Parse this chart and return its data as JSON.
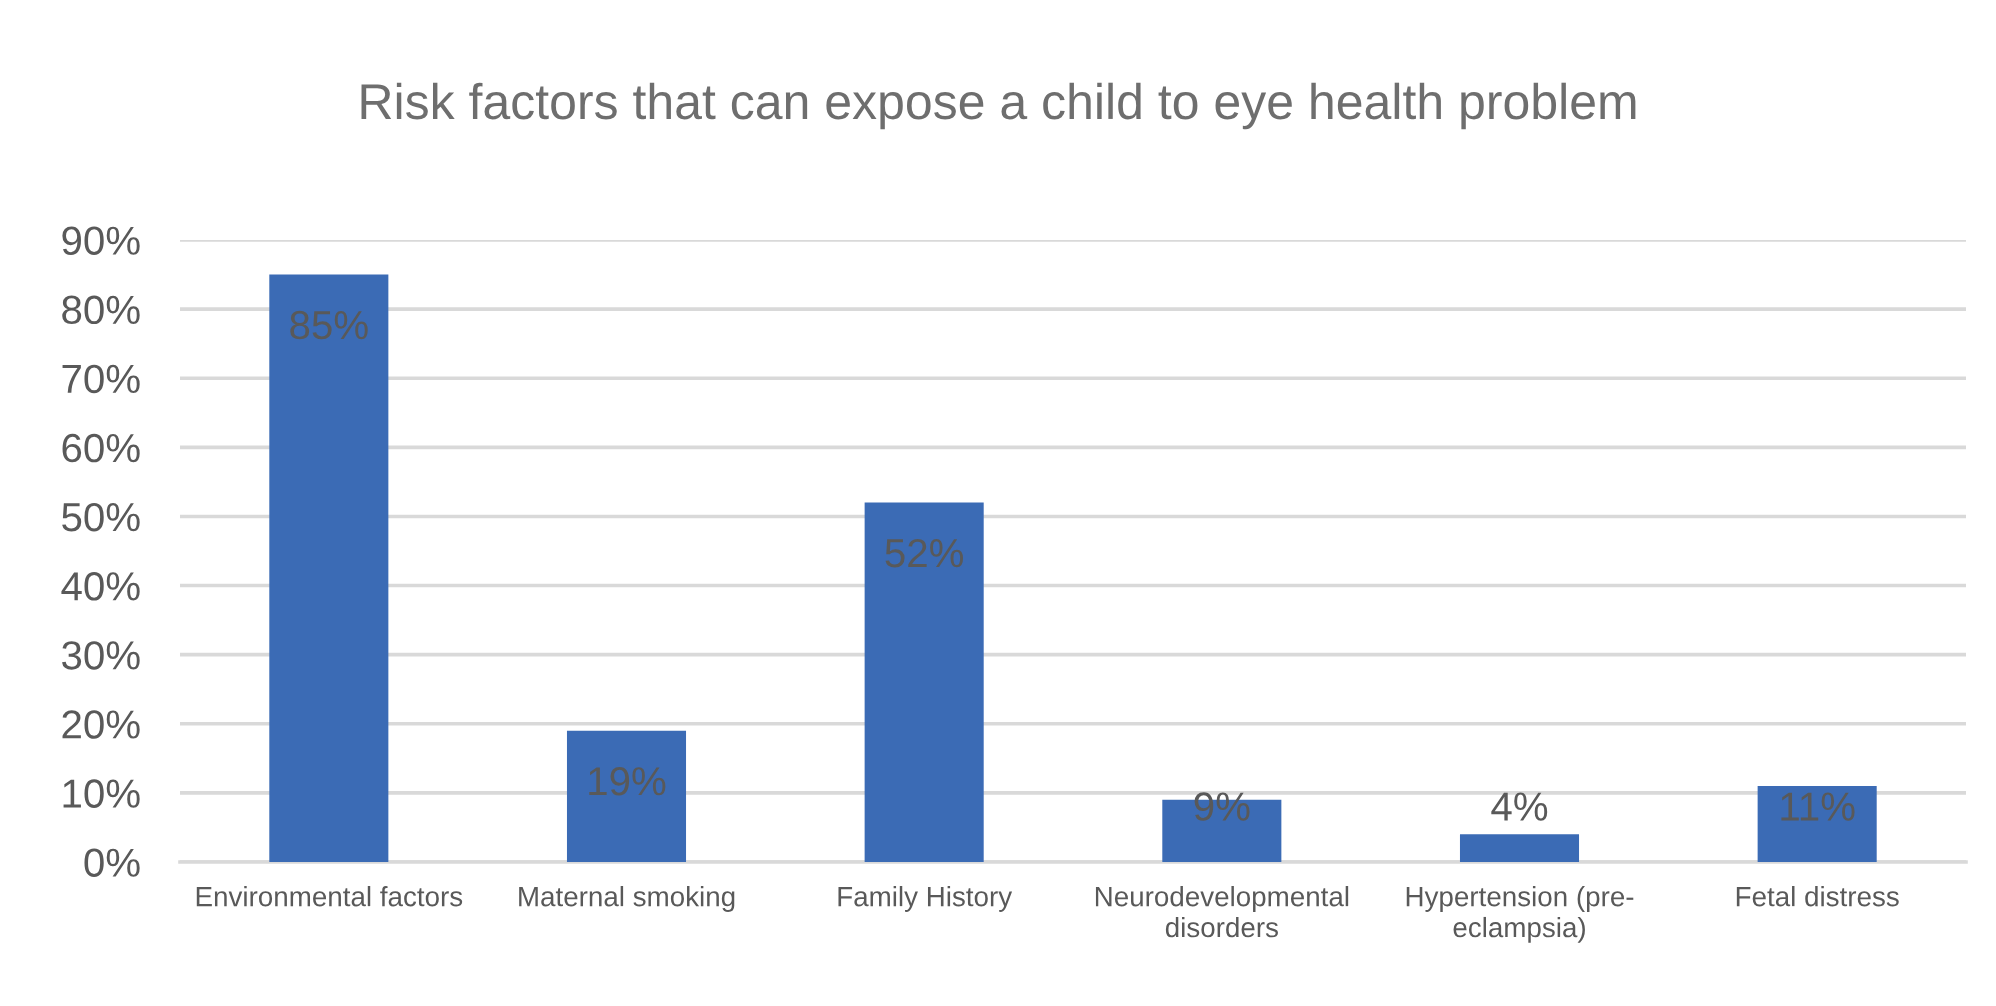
{
  "chart_data": {
    "type": "bar",
    "title": "Risk factors that can expose a child to eye health problem",
    "categories": [
      "Environmental factors",
      "Maternal smoking",
      "Family History",
      "Neurodevelopmental disorders",
      "Hypertension (pre-eclampsia)",
      "Fetal distress"
    ],
    "values": [
      85,
      19,
      52,
      9,
      4,
      11
    ],
    "color": "#3b6bb5",
    "value_labels": [
      "85%",
      "19%",
      "52%",
      "9%",
      "4%",
      "11%"
    ],
    "ylim": [
      0,
      90
    ],
    "yticks": [
      {
        "value": 0,
        "label": "0%"
      },
      {
        "value": 10,
        "label": "10%"
      },
      {
        "value": 20,
        "label": "20%"
      },
      {
        "value": 30,
        "label": "30%"
      },
      {
        "value": 40,
        "label": "40%"
      },
      {
        "value": 50,
        "label": "50%"
      },
      {
        "value": 60,
        "label": "60%"
      },
      {
        "value": 70,
        "label": "70%"
      },
      {
        "value": 80,
        "label": "80%"
      },
      {
        "value": 90,
        "label": "90%"
      }
    ],
    "grid": "y"
  }
}
